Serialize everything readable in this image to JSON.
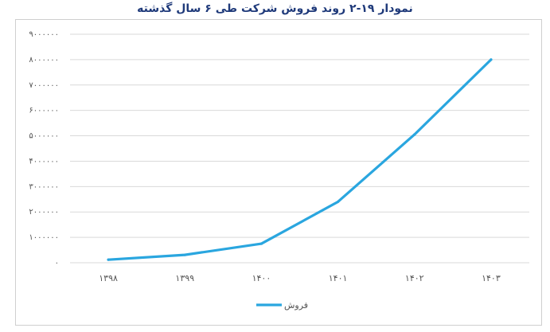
{
  "title": "نمودار ۱۹-۲ روند فروش شرکت طی ۶ سال گذشته",
  "chart_data": {
    "type": "line",
    "title": "نمودار ۱۹-۲ روند فروش شرکت طی ۶ سال گذشته",
    "categories": [
      "۱۳۹۸",
      "۱۳۹۹",
      "۱۴۰۰",
      "۱۴۰۱",
      "۱۴۰۲",
      "۱۴۰۳"
    ],
    "series": [
      {
        "name": "فروش",
        "values": [
          120000,
          310000,
          750000,
          2400000,
          5050000,
          8000000
        ]
      }
    ],
    "ylim": [
      0,
      9000000
    ],
    "y_ticks": [
      0,
      1000000,
      2000000,
      3000000,
      4000000,
      5000000,
      6000000,
      7000000,
      8000000,
      9000000
    ],
    "y_tick_labels": [
      "۰",
      "۱۰۰۰۰۰۰",
      "۲۰۰۰۰۰۰",
      "۳۰۰۰۰۰۰",
      "۴۰۰۰۰۰۰",
      "۵۰۰۰۰۰۰",
      "۶۰۰۰۰۰۰",
      "۷۰۰۰۰۰۰",
      "۸۰۰۰۰۰۰",
      "۹۰۰۰۰۰۰"
    ],
    "xlabel": "",
    "ylabel": "",
    "grid": true,
    "legend_position": "bottom",
    "line_color": "#2aa6df",
    "grid_color": "#d9d9d9"
  }
}
